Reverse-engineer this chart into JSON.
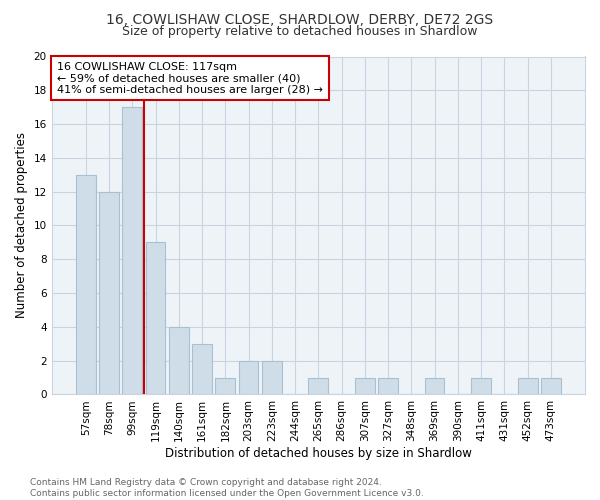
{
  "title1": "16, COWLISHAW CLOSE, SHARDLOW, DERBY, DE72 2GS",
  "title2": "Size of property relative to detached houses in Shardlow",
  "xlabel": "Distribution of detached houses by size in Shardlow",
  "ylabel": "Number of detached properties",
  "categories": [
    "57sqm",
    "78sqm",
    "99sqm",
    "119sqm",
    "140sqm",
    "161sqm",
    "182sqm",
    "203sqm",
    "223sqm",
    "244sqm",
    "265sqm",
    "286sqm",
    "307sqm",
    "327sqm",
    "348sqm",
    "369sqm",
    "390sqm",
    "411sqm",
    "431sqm",
    "452sqm",
    "473sqm"
  ],
  "values": [
    13,
    12,
    17,
    9,
    4,
    3,
    1,
    2,
    2,
    0,
    1,
    0,
    1,
    1,
    0,
    1,
    0,
    1,
    0,
    1,
    1
  ],
  "bar_color": "#cfdde8",
  "bar_edge_color": "#a8c0d0",
  "vline_x": 2.5,
  "vline_color": "#cc0000",
  "annotation_text": "16 COWLISHAW CLOSE: 117sqm\n← 59% of detached houses are smaller (40)\n41% of semi-detached houses are larger (28) →",
  "annotation_box_color": "#ffffff",
  "annotation_box_edge_color": "#cc0000",
  "ylim": [
    0,
    20
  ],
  "yticks": [
    0,
    2,
    4,
    6,
    8,
    10,
    12,
    14,
    16,
    18,
    20
  ],
  "grid_color": "#c8d4e0",
  "bg_color": "#eef3f8",
  "footer": "Contains HM Land Registry data © Crown copyright and database right 2024.\nContains public sector information licensed under the Open Government Licence v3.0.",
  "title1_fontsize": 10,
  "title2_fontsize": 9,
  "xlabel_fontsize": 8.5,
  "ylabel_fontsize": 8.5,
  "tick_fontsize": 7.5,
  "annotation_fontsize": 8,
  "footer_fontsize": 6.5
}
